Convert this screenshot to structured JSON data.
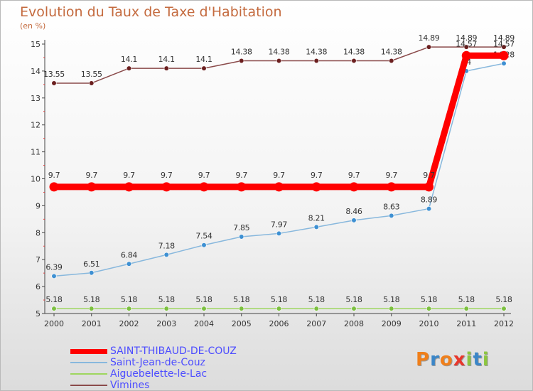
{
  "header": {
    "title": "Evolution du Taux de Taxe d'Habitation",
    "subtitle": "(en %)"
  },
  "chart_data": {
    "type": "line",
    "title": "Evolution du Taux de Taxe d'Habitation",
    "ylabel": "(en %)",
    "xlabel": "",
    "x": [
      "2000",
      "2001",
      "2002",
      "2003",
      "2004",
      "2005",
      "2006",
      "2007",
      "2008",
      "2009",
      "2010",
      "2011",
      "2012"
    ],
    "yticks": [
      5,
      6,
      7,
      8,
      9,
      10,
      11,
      12,
      13,
      14,
      15
    ],
    "ylim": [
      5,
      15
    ],
    "grid": false,
    "legend_position": "bottom-left",
    "series": [
      {
        "name": "SAINT-THIBAUD-DE-COUZ",
        "color": "#ff0000",
        "marker": "#ff0000",
        "thickness": "thick",
        "values": [
          9.7,
          9.7,
          9.7,
          9.7,
          9.7,
          9.7,
          9.7,
          9.7,
          9.7,
          9.7,
          9.7,
          14.57,
          14.57
        ],
        "labels": [
          "9.7",
          "9.7",
          "9.7",
          "9.7",
          "9.7",
          "9.7",
          "9.7",
          "9.7",
          "9.7",
          "9.7",
          "9.7",
          "14.57",
          "14.57"
        ]
      },
      {
        "name": "Saint-Jean-de-Couz",
        "color": "#88b8dd",
        "marker": "#3e90d2",
        "thickness": "thin",
        "values": [
          6.39,
          6.51,
          6.84,
          7.18,
          7.54,
          7.85,
          7.97,
          8.21,
          8.46,
          8.63,
          8.89,
          14,
          14.28
        ],
        "labels": [
          "6.39",
          "6.51",
          "6.84",
          "7.18",
          "7.54",
          "7.85",
          "7.97",
          "8.21",
          "8.46",
          "8.63",
          "8.89",
          "14",
          "14.28"
        ]
      },
      {
        "name": "Aiguebelette-le-Lac",
        "color": "#9ed65f",
        "marker": "#7cc040",
        "thickness": "thin",
        "values": [
          5.18,
          5.18,
          5.18,
          5.18,
          5.18,
          5.18,
          5.18,
          5.18,
          5.18,
          5.18,
          5.18,
          5.18,
          5.18
        ],
        "labels": [
          "5.18",
          "5.18",
          "5.18",
          "5.18",
          "5.18",
          "5.18",
          "5.18",
          "5.18",
          "5.18",
          "5.18",
          "5.18",
          "5.18",
          "5.18"
        ]
      },
      {
        "name": "Vimines",
        "color": "#8a4a4a",
        "marker": "#6b1f1f",
        "thickness": "thin",
        "values": [
          13.55,
          13.55,
          14.1,
          14.1,
          14.1,
          14.38,
          14.38,
          14.38,
          14.38,
          14.38,
          14.89,
          14.89,
          14.89
        ],
        "labels": [
          "13.55",
          "13.55",
          "14.1",
          "14.1",
          "14.1",
          "14.38",
          "14.38",
          "14.38",
          "14.38",
          "14.38",
          "14.89",
          "14.89",
          "14.89"
        ]
      }
    ]
  },
  "logo": {
    "letters": [
      "P",
      "r",
      "o",
      "x",
      "i",
      "t",
      "i"
    ],
    "colors": [
      "#f07f1a",
      "#3a86c8",
      "#f07f1a",
      "#e8372c",
      "#8cc63f",
      "#3a86c8",
      "#8cc63f"
    ]
  }
}
